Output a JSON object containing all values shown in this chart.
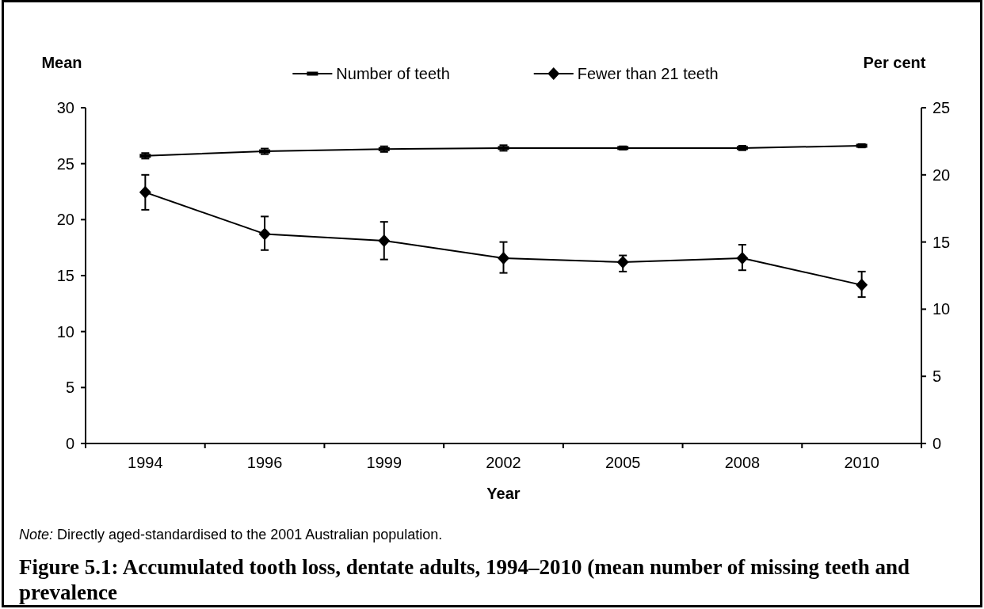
{
  "chart_data": {
    "type": "line",
    "title": "Figure 5.1: Accumulated tooth loss, dentate adults, 1994–2010 (mean number of missing teeth and prevalence",
    "xlabel": "Year",
    "ylabel": "Mean",
    "y2label": "Per cent",
    "categories": [
      "1994",
      "1996",
      "1999",
      "2002",
      "2005",
      "2008",
      "2010"
    ],
    "series": [
      {
        "name": "Number of teeth",
        "color": "#000000",
        "marker": "square",
        "values": [
          25.7,
          26.1,
          26.3,
          26.4,
          26.4,
          26.4,
          26.6
        ],
        "errors": [
          0.25,
          0.25,
          0.25,
          0.25,
          0.15,
          0.2,
          0.15
        ]
      },
      {
        "name": "Fewer than 21 teeth",
        "color": "#000000",
        "marker": "diamond",
        "axis": "y2",
        "values": [
          18.7,
          15.6,
          15.1,
          13.8,
          13.5,
          13.8,
          11.8
        ],
        "errors": [
          [
            17.4,
            20.0
          ],
          [
            14.4,
            16.9
          ],
          [
            13.7,
            16.5
          ],
          [
            12.7,
            15.0
          ],
          [
            12.8,
            14.0
          ],
          [
            12.9,
            14.8
          ],
          [
            10.9,
            12.8
          ]
        ]
      }
    ],
    "ylim": [
      0,
      30
    ],
    "yticks": [
      0,
      5,
      10,
      15,
      20,
      25,
      30
    ],
    "y2lim": [
      0,
      25
    ],
    "y2ticks": [
      0,
      5,
      10,
      15,
      20,
      25
    ],
    "legend": "top",
    "line_style": "solid",
    "annotations": [
      "Note: Directly aged-standardised to the 2001 Australian population."
    ]
  }
}
